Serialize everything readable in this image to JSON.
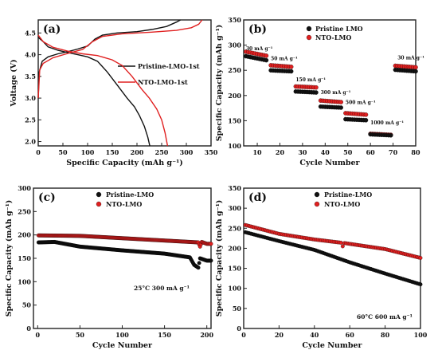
{
  "colors": {
    "pristine": "#111111",
    "nto": "#e02020"
  },
  "chart_data": [
    {
      "type": "line",
      "panel_label": "(a)",
      "xlabel": "Specific Capacity (mAh g⁻¹)",
      "ylabel": "Voltage (V)",
      "xlim": [
        0,
        350
      ],
      "ylim": [
        1.9,
        4.8
      ],
      "xticks": [
        0,
        50,
        100,
        150,
        200,
        250,
        300,
        350
      ],
      "yticks": [
        2.0,
        2.5,
        3.0,
        3.5,
        4.0,
        4.5
      ],
      "legend_position": "center-right",
      "series": [
        {
          "name": "Pristine-LMO-1st",
          "color": "#111111",
          "charge": [
            [
              0,
              3.0
            ],
            [
              2,
              3.6
            ],
            [
              8,
              3.85
            ],
            [
              20,
              3.95
            ],
            [
              40,
              4.02
            ],
            [
              60,
              4.07
            ],
            [
              80,
              4.13
            ],
            [
              100,
              4.2
            ],
            [
              115,
              4.36
            ],
            [
              130,
              4.45
            ],
            [
              160,
              4.5
            ],
            [
              200,
              4.53
            ],
            [
              230,
              4.58
            ],
            [
              260,
              4.65
            ],
            [
              280,
              4.75
            ],
            [
              288,
              4.8
            ]
          ],
          "discharge": [
            [
              0,
              4.4
            ],
            [
              10,
              4.3
            ],
            [
              20,
              4.18
            ],
            [
              40,
              4.1
            ],
            [
              60,
              4.05
            ],
            [
              80,
              4.0
            ],
            [
              100,
              3.95
            ],
            [
              120,
              3.85
            ],
            [
              140,
              3.6
            ],
            [
              160,
              3.3
            ],
            [
              180,
              3.0
            ],
            [
              195,
              2.8
            ],
            [
              205,
              2.6
            ],
            [
              215,
              2.35
            ],
            [
              222,
              2.1
            ],
            [
              226,
              1.9
            ]
          ]
        },
        {
          "name": "NTO-LMO-1st",
          "color": "#e02020",
          "charge": [
            [
              0,
              3.0
            ],
            [
              3,
              3.65
            ],
            [
              10,
              3.8
            ],
            [
              30,
              3.93
            ],
            [
              60,
              4.03
            ],
            [
              90,
              4.12
            ],
            [
              110,
              4.3
            ],
            [
              130,
              4.42
            ],
            [
              170,
              4.48
            ],
            [
              230,
              4.52
            ],
            [
              280,
              4.56
            ],
            [
              310,
              4.62
            ],
            [
              325,
              4.7
            ],
            [
              332,
              4.8
            ]
          ],
          "discharge": [
            [
              0,
              4.45
            ],
            [
              10,
              4.3
            ],
            [
              30,
              4.17
            ],
            [
              60,
              4.08
            ],
            [
              90,
              4.02
            ],
            [
              120,
              3.98
            ],
            [
              150,
              3.88
            ],
            [
              170,
              3.75
            ],
            [
              190,
              3.5
            ],
            [
              210,
              3.2
            ],
            [
              225,
              3.0
            ],
            [
              240,
              2.75
            ],
            [
              250,
              2.5
            ],
            [
              257,
              2.2
            ],
            [
              262,
              1.9
            ]
          ]
        }
      ]
    },
    {
      "type": "scatter",
      "panel_label": "(b)",
      "xlabel": "Cycle Number",
      "ylabel": "Specific Capacity (mAh g⁻¹)",
      "xlim": [
        4,
        80
      ],
      "ylim": [
        100,
        350
      ],
      "xticks": [
        10,
        20,
        30,
        40,
        50,
        60,
        70,
        80
      ],
      "yticks": [
        100,
        150,
        200,
        250,
        300,
        350
      ],
      "legend_position": "top-center",
      "rate_annotations": [
        {
          "text": "30 mA g⁻¹",
          "x": 5,
          "y": 290
        },
        {
          "text": "50 mA g⁻¹",
          "x": 16,
          "y": 270
        },
        {
          "text": "150 mA g⁻¹",
          "x": 27,
          "y": 228
        },
        {
          "text": "300 mA g⁻¹",
          "x": 38,
          "y": 203
        },
        {
          "text": "500 mA g⁻¹",
          "x": 49,
          "y": 183
        },
        {
          "text": "1000 mA g⁻¹",
          "x": 60,
          "y": 143
        },
        {
          "text": "30 mA g⁻¹",
          "x": 72,
          "y": 272
        }
      ],
      "segments": [
        {
          "x_start": 5,
          "x_end": 14,
          "pristine": [
            278,
            270
          ],
          "nto": [
            287,
            279
          ]
        },
        {
          "x_start": 16,
          "x_end": 25,
          "pristine": [
            250,
            248
          ],
          "nto": [
            260,
            257
          ]
        },
        {
          "x_start": 27,
          "x_end": 36,
          "pristine": [
            208,
            206
          ],
          "nto": [
            218,
            216
          ]
        },
        {
          "x_start": 38,
          "x_end": 47,
          "pristine": [
            178,
            176
          ],
          "nto": [
            190,
            187
          ]
        },
        {
          "x_start": 49,
          "x_end": 58,
          "pristine": [
            153,
            151
          ],
          "nto": [
            165,
            162
          ]
        },
        {
          "x_start": 60,
          "x_end": 69,
          "pristine": [
            123,
            121
          ],
          "nto": [
            124,
            122
          ]
        },
        {
          "x_start": 71,
          "x_end": 80,
          "pristine": [
            251,
            248
          ],
          "nto": [
            259,
            256
          ]
        }
      ],
      "series": [
        {
          "name": "Pristine LMO",
          "color": "#111111"
        },
        {
          "name": "NTO-LMO",
          "color": "#e02020"
        }
      ]
    },
    {
      "type": "scatter",
      "panel_label": "(c)",
      "xlabel": "Cycle Number",
      "ylabel": "Specific Capacity (mAh g⁻¹)",
      "condition": "25°C 300 mA g⁻¹",
      "xlim": [
        -5,
        205
      ],
      "ylim": [
        0,
        300
      ],
      "xticks": [
        0,
        50,
        100,
        150,
        200
      ],
      "yticks": [
        0,
        50,
        100,
        150,
        200,
        250,
        300
      ],
      "legend_position": "top-center",
      "series": [
        {
          "name": "Pristine-LMO",
          "color": "#111111",
          "anchors": [
            [
              1,
              184
            ],
            [
              20,
              185
            ],
            [
              50,
              175
            ],
            [
              100,
              167
            ],
            [
              150,
              160
            ],
            [
              180,
              152
            ],
            [
              185,
              136
            ],
            [
              190,
              130
            ],
            [
              192,
              150
            ],
            [
              200,
              145
            ]
          ]
        },
        {
          "name": "NTO-LMO",
          "color": "#e02020",
          "anchors": [
            [
              1,
              199
            ],
            [
              50,
              198
            ],
            [
              100,
              193
            ],
            [
              150,
              188
            ],
            [
              190,
              184
            ],
            [
              192,
              175
            ],
            [
              194,
              185
            ],
            [
              200,
              181
            ]
          ]
        }
      ]
    },
    {
      "type": "scatter",
      "panel_label": "(d)",
      "xlabel": "Cycle Number",
      "ylabel": "Specific Capacity (mAh g⁻¹)",
      "condition": "60°C 600 mA g⁻¹",
      "xlim": [
        0,
        100
      ],
      "ylim": [
        0,
        350
      ],
      "xticks": [
        0,
        20,
        40,
        60,
        80,
        100
      ],
      "yticks": [
        0,
        50,
        100,
        150,
        200,
        250,
        300,
        350
      ],
      "legend_position": "top-center",
      "series": [
        {
          "name": "Pristine-LMO",
          "color": "#111111",
          "anchors": [
            [
              1,
              240
            ],
            [
              20,
              218
            ],
            [
              40,
              196
            ],
            [
              60,
              165
            ],
            [
              80,
              137
            ],
            [
              100,
              110
            ]
          ]
        },
        {
          "name": "NTO-LMO",
          "color": "#e02020",
          "anchors": [
            [
              1,
              258
            ],
            [
              20,
              236
            ],
            [
              40,
              222
            ],
            [
              55,
              214
            ],
            [
              56,
              205
            ],
            [
              57,
              213
            ],
            [
              80,
              198
            ],
            [
              100,
              176
            ]
          ]
        }
      ]
    }
  ]
}
